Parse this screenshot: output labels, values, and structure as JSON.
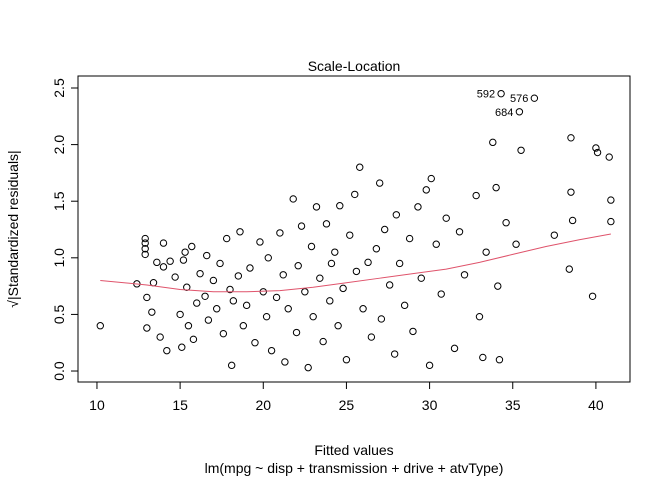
{
  "chart_data": {
    "type": "scatter",
    "title": "Scale-Location",
    "x_label": "Fitted values",
    "subtitle": "lm(mpg ~ disp + transmission + drive + atvType)",
    "y_label": "√|Standardized residuals|",
    "x": [
      10.2,
      12.4,
      12.9,
      12.9,
      12.9,
      12.9,
      13.0,
      13.0,
      13.3,
      13.4,
      13.6,
      13.8,
      14.0,
      14.0,
      14.2,
      14.4,
      14.7,
      15.0,
      15.1,
      15.2,
      15.3,
      15.4,
      15.5,
      15.7,
      15.8,
      16.0,
      16.2,
      16.5,
      16.6,
      16.7,
      17.0,
      17.2,
      17.4,
      17.6,
      17.8,
      18.0,
      18.1,
      18.2,
      18.5,
      18.6,
      18.8,
      19.0,
      19.2,
      19.5,
      19.8,
      20.0,
      20.2,
      20.3,
      20.5,
      20.8,
      21.0,
      21.2,
      21.3,
      21.5,
      21.8,
      22.0,
      22.1,
      22.3,
      22.5,
      22.7,
      22.9,
      23.0,
      23.2,
      23.4,
      23.6,
      23.8,
      24.0,
      24.1,
      24.3,
      24.5,
      24.6,
      24.8,
      25.0,
      25.2,
      25.5,
      25.6,
      25.8,
      26.0,
      26.3,
      26.5,
      26.8,
      27.0,
      27.1,
      27.3,
      27.6,
      27.9,
      28.0,
      28.2,
      28.5,
      28.8,
      29.0,
      29.3,
      29.5,
      29.8,
      30.0,
      30.1,
      30.4,
      30.7,
      31.0,
      31.5,
      31.8,
      32.1,
      32.8,
      33.0,
      33.2,
      33.4,
      33.8,
      34.0,
      34.1,
      34.2,
      34.3,
      34.6,
      35.2,
      35.4,
      35.5,
      36.3,
      37.5,
      38.4,
      38.5,
      38.5,
      38.6,
      39.8,
      40.0,
      40.1,
      40.8,
      40.9,
      40.9
    ],
    "values": [
      0.4,
      0.77,
      1.17,
      1.13,
      1.08,
      1.03,
      0.65,
      0.38,
      0.52,
      0.78,
      0.96,
      0.3,
      1.13,
      0.92,
      0.18,
      0.97,
      0.83,
      0.5,
      0.21,
      0.98,
      1.05,
      0.74,
      0.4,
      1.1,
      0.28,
      0.6,
      0.86,
      0.66,
      1.02,
      0.45,
      0.8,
      0.55,
      0.95,
      0.33,
      1.17,
      0.72,
      0.05,
      0.62,
      0.84,
      1.23,
      0.4,
      0.58,
      0.91,
      0.25,
      1.14,
      0.7,
      0.48,
      1.0,
      0.18,
      0.65,
      1.22,
      0.85,
      0.08,
      0.55,
      1.52,
      0.34,
      0.93,
      1.28,
      0.7,
      0.03,
      1.1,
      0.48,
      1.45,
      0.82,
      0.26,
      1.3,
      0.62,
      0.95,
      1.05,
      0.4,
      1.46,
      0.73,
      0.1,
      1.2,
      1.56,
      0.88,
      1.8,
      0.55,
      0.96,
      0.3,
      1.08,
      1.66,
      0.46,
      1.25,
      0.76,
      0.15,
      1.38,
      0.95,
      0.58,
      1.17,
      0.35,
      1.45,
      0.82,
      1.6,
      0.05,
      1.7,
      1.12,
      0.68,
      1.35,
      0.2,
      1.23,
      0.85,
      1.55,
      0.48,
      0.12,
      1.05,
      2.02,
      1.62,
      0.75,
      0.1,
      2.45,
      1.31,
      1.12,
      2.29,
      1.95,
      2.41,
      1.2,
      0.9,
      2.06,
      1.58,
      1.33,
      0.66,
      1.97,
      1.93,
      1.89,
      1.51,
      1.32
    ],
    "smooth": {
      "color": "#df536b",
      "x": [
        10.2,
        13,
        15,
        17,
        19,
        21,
        23,
        25,
        27,
        29,
        31,
        33,
        35,
        37,
        39,
        40.9
      ],
      "values": [
        0.8,
        0.76,
        0.72,
        0.7,
        0.7,
        0.71,
        0.74,
        0.78,
        0.82,
        0.86,
        0.9,
        0.96,
        1.03,
        1.1,
        1.16,
        1.21
      ]
    },
    "annotations": [
      {
        "text": "592",
        "x": 34.3,
        "y": 2.45
      },
      {
        "text": "576",
        "x": 36.3,
        "y": 2.41
      },
      {
        "text": "684",
        "x": 35.4,
        "y": 2.29
      }
    ],
    "xlim": [
      8.86,
      42.05
    ],
    "ylim": [
      -0.097,
      2.606
    ],
    "xticks": [
      10,
      15,
      20,
      25,
      30,
      35,
      40
    ],
    "yticks": [
      {
        "value": 0,
        "label": "0.0"
      },
      {
        "value": 0.5,
        "label": "0.5"
      },
      {
        "value": 1,
        "label": "1.0"
      },
      {
        "value": 1.5,
        "label": "1.5"
      },
      {
        "value": 2,
        "label": "2.0"
      },
      {
        "value": 2.5,
        "label": "2.5"
      }
    ]
  }
}
